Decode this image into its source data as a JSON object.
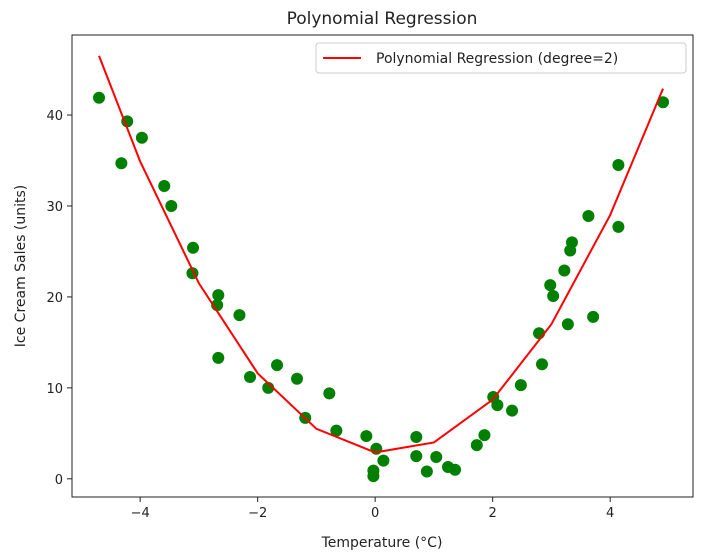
{
  "chart_data": {
    "type": "scatter",
    "title": "Polynomial Regression",
    "xlabel": "Temperature (°C)",
    "ylabel": "Ice Cream Sales (units)",
    "xlim": [
      -5.16,
      5.41
    ],
    "ylim": [
      -2.0,
      48.8
    ],
    "xticks": [
      -4,
      -2,
      0,
      2,
      4
    ],
    "yticks": [
      0,
      10,
      20,
      30,
      40
    ],
    "grid": false,
    "legend": {
      "placement": "top-right",
      "entries": [
        "Polynomial Regression (degree=2)"
      ]
    },
    "colors": {
      "points": "#008000",
      "line": "#ff0000"
    },
    "series": [
      {
        "kind": "scatter",
        "points": [
          [
            -4.7,
            41.9
          ],
          [
            -4.32,
            34.7
          ],
          [
            -4.22,
            39.3
          ],
          [
            -3.97,
            37.5
          ],
          [
            -3.59,
            32.2
          ],
          [
            -3.47,
            30.0
          ],
          [
            -3.1,
            25.4
          ],
          [
            -3.11,
            22.6
          ],
          [
            -2.67,
            20.2
          ],
          [
            -2.69,
            19.1
          ],
          [
            -2.67,
            13.3
          ],
          [
            -2.31,
            18.0
          ],
          [
            -2.13,
            11.2
          ],
          [
            -1.82,
            10.0
          ],
          [
            -1.67,
            12.5
          ],
          [
            -1.33,
            11.0
          ],
          [
            -1.19,
            6.7
          ],
          [
            -0.78,
            9.4
          ],
          [
            -0.66,
            5.3
          ],
          [
            -0.15,
            4.7
          ],
          [
            0.02,
            3.3
          ],
          [
            0.14,
            2.0
          ],
          [
            -0.03,
            0.9
          ],
          [
            -0.03,
            0.3
          ],
          [
            0.7,
            4.6
          ],
          [
            0.7,
            2.5
          ],
          [
            0.88,
            0.8
          ],
          [
            1.04,
            2.4
          ],
          [
            1.24,
            1.3
          ],
          [
            1.36,
            1.0
          ],
          [
            1.73,
            3.7
          ],
          [
            1.86,
            4.8
          ],
          [
            2.01,
            9.0
          ],
          [
            2.08,
            8.1
          ],
          [
            2.33,
            7.5
          ],
          [
            2.48,
            10.3
          ],
          [
            2.79,
            16.0
          ],
          [
            2.84,
            12.6
          ],
          [
            2.98,
            21.3
          ],
          [
            3.03,
            20.1
          ],
          [
            3.22,
            22.9
          ],
          [
            3.28,
            17.0
          ],
          [
            3.32,
            25.1
          ],
          [
            3.35,
            26.0
          ],
          [
            3.63,
            28.9
          ],
          [
            3.71,
            17.8
          ],
          [
            4.14,
            34.5
          ],
          [
            4.14,
            27.7
          ],
          [
            4.9,
            41.4
          ]
        ]
      },
      {
        "kind": "line",
        "name": "Polynomial Regression (degree=2)",
        "points": [
          [
            -4.7,
            46.5
          ],
          [
            -4.0,
            34.9
          ],
          [
            -3.0,
            21.5
          ],
          [
            -2.0,
            11.6
          ],
          [
            -1.0,
            5.5
          ],
          [
            0.0,
            2.9
          ],
          [
            1.0,
            4.0
          ],
          [
            2.0,
            8.7
          ],
          [
            3.0,
            17.0
          ],
          [
            4.0,
            29.0
          ],
          [
            4.9,
            42.9
          ]
        ]
      }
    ]
  }
}
